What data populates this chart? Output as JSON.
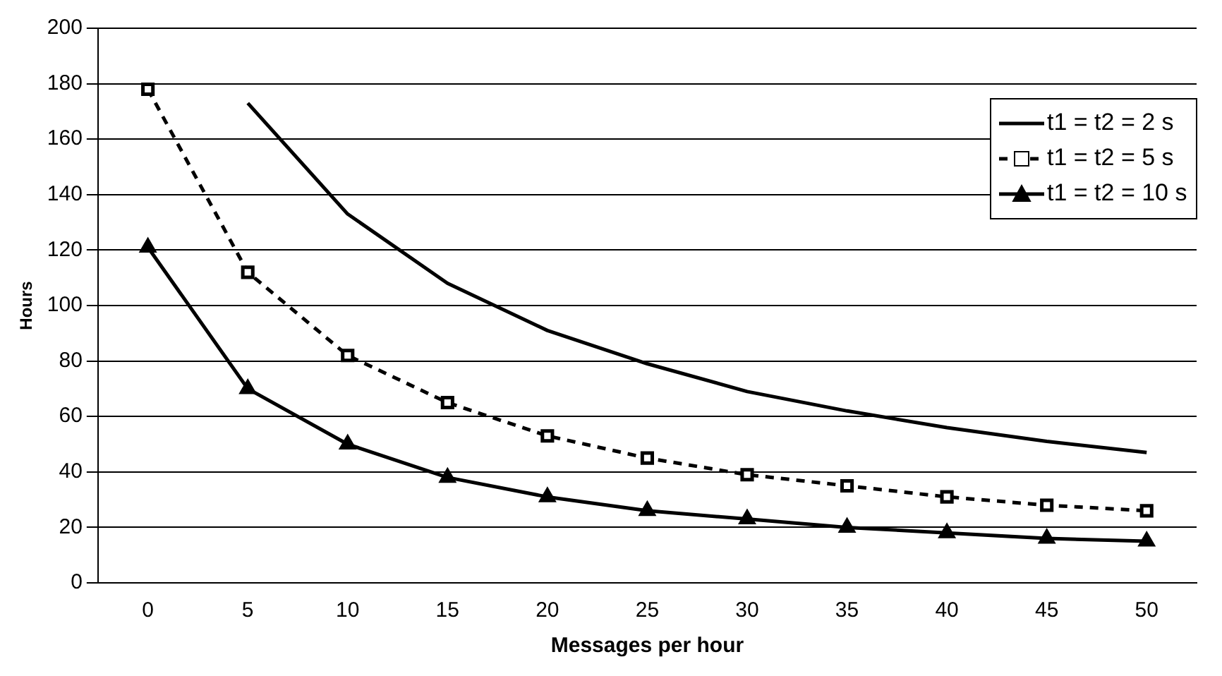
{
  "chart_data": {
    "type": "line",
    "xlabel": "Messages per hour",
    "ylabel": "Hours",
    "categories": [
      "0",
      "5",
      "10",
      "15",
      "20",
      "25",
      "30",
      "35",
      "40",
      "45",
      "50"
    ],
    "ylim": [
      0,
      200
    ],
    "yticks": [
      0,
      20,
      40,
      60,
      80,
      100,
      120,
      140,
      160,
      180,
      200
    ],
    "grid": "y",
    "legend": "top right",
    "series": [
      {
        "name": "t1 = t2 = 2 s",
        "color": "#000000",
        "marker": "none",
        "line_style": "solid",
        "values": [
          null,
          173,
          133,
          108,
          91,
          79,
          69,
          62,
          56,
          51,
          47
        ]
      },
      {
        "name": "t1 = t2 = 5 s",
        "color": "#000000",
        "marker": "square",
        "line_style": "dashed",
        "values": [
          178,
          112,
          82,
          65,
          53,
          45,
          39,
          35,
          31,
          28,
          26
        ]
      },
      {
        "name": "t1 = t2 = 10 s",
        "color": "#000000",
        "marker": "triangle",
        "line_style": "solid",
        "values": [
          121,
          70,
          50,
          38,
          31,
          26,
          23,
          20,
          18,
          16,
          15
        ]
      }
    ]
  }
}
